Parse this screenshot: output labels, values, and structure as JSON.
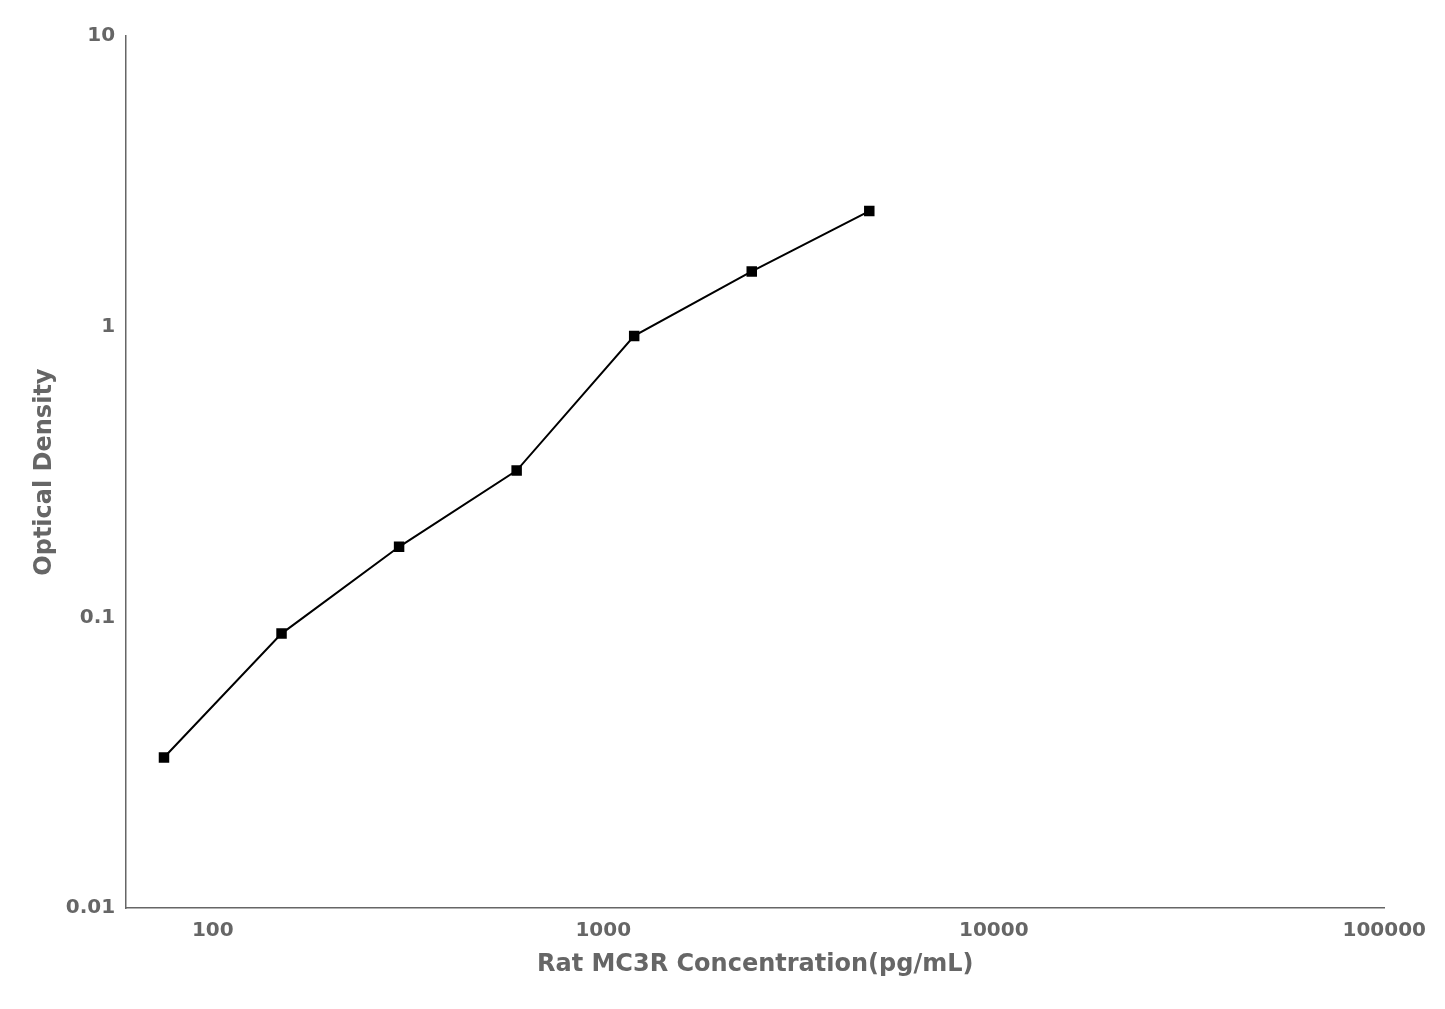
{
  "chart_data": {
    "type": "line",
    "x": [
      75,
      150,
      300,
      600,
      1200,
      2400,
      4800
    ],
    "values": [
      0.033,
      0.088,
      0.175,
      0.32,
      0.93,
      1.55,
      2.5
    ],
    "xlabel": "Rat MC3R Concentration(pg/mL)",
    "ylabel": "Optical Density",
    "xlim": [
      60,
      100000
    ],
    "ylim": [
      0.01,
      10
    ],
    "xticks": [
      100,
      1000,
      10000,
      100000
    ],
    "yticks": [
      0.01,
      0.1,
      1,
      10
    ],
    "log": true,
    "grid": false,
    "color": "#000000",
    "marker": "square"
  }
}
